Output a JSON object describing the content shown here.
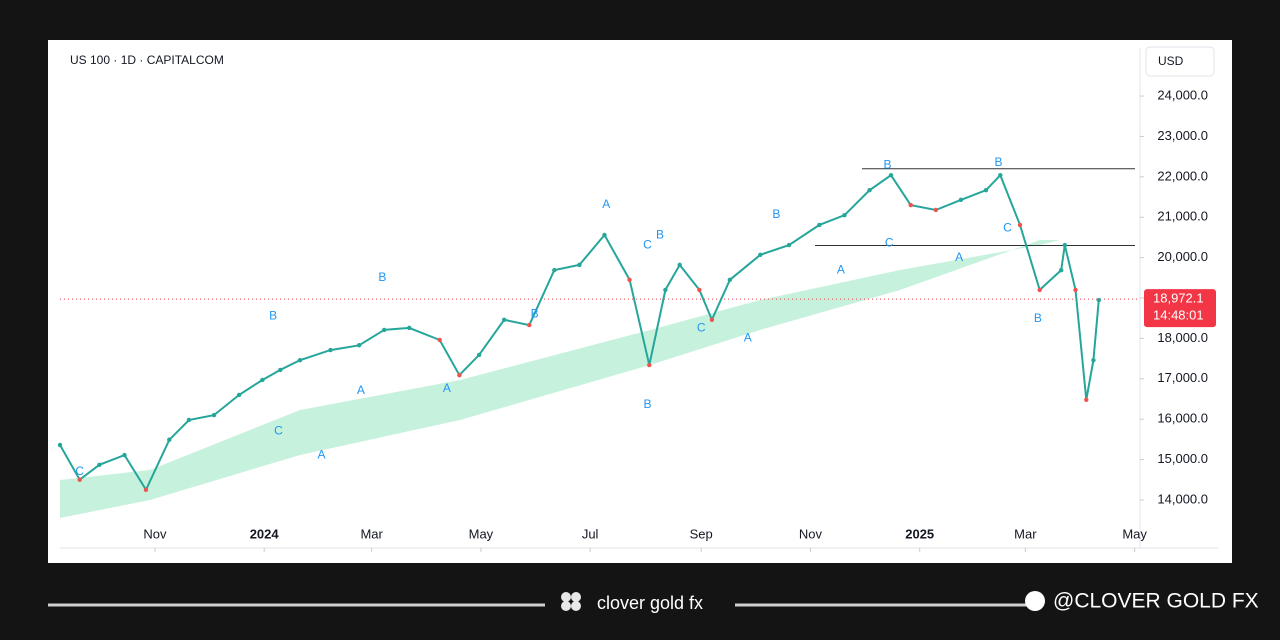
{
  "chart_data": {
    "type": "line",
    "title": "US 100 · 1D · CAPITALCOM",
    "currency": "USD",
    "series": [
      {
        "name": "US 100",
        "color": "#26a69a",
        "x": [
          -22,
          -11,
          0,
          14,
          26,
          39,
          50,
          64,
          78,
          91,
          101,
          112,
          129,
          145,
          159,
          173,
          190,
          201,
          212,
          226,
          240,
          254,
          268,
          282,
          296,
          307,
          316,
          324,
          335,
          342,
          352,
          369,
          385,
          402,
          416,
          430,
          442,
          453,
          467,
          481,
          495,
          503,
          514,
          525,
          537,
          539,
          545,
          551,
          555,
          558
        ],
        "values": [
          15360,
          14500,
          14870,
          15110,
          14250,
          15490,
          15980,
          16100,
          16600,
          16970,
          17220,
          17460,
          17710,
          17830,
          18210,
          18260,
          17960,
          17090,
          17590,
          18460,
          18330,
          19690,
          19820,
          20560,
          19450,
          17340,
          19200,
          19820,
          19200,
          18460,
          19450,
          20070,
          20310,
          20810,
          21050,
          21670,
          22040,
          21300,
          21180,
          21430,
          21670,
          22040,
          20810,
          19200,
          19690,
          20310,
          19200,
          16480,
          17460,
          18950
        ]
      }
    ],
    "xlim": [
      -22,
      581
    ],
    "xticks": [
      {
        "value": 31,
        "label": "Nov"
      },
      {
        "value": 92,
        "label": "2024"
      },
      {
        "value": 152,
        "label": "Mar"
      },
      {
        "value": 213,
        "label": "May"
      },
      {
        "value": 274,
        "label": "Jul"
      },
      {
        "value": 336,
        "label": "Sep"
      },
      {
        "value": 397,
        "label": "Nov"
      },
      {
        "value": 458,
        "label": "2025"
      },
      {
        "value": 517,
        "label": "Mar"
      },
      {
        "value": 578,
        "label": "May"
      }
    ],
    "ylim": [
      12810,
      25190
    ],
    "yticks": [
      {
        "value": 14000,
        "label": "14,000.0"
      },
      {
        "value": 15000,
        "label": "15,000.0"
      },
      {
        "value": 16000,
        "label": "16,000.0"
      },
      {
        "value": 17000,
        "label": "17,000.0"
      },
      {
        "value": 18000,
        "label": "18,000.0"
      },
      {
        "value": 19000,
        "label": "19,000.0"
      },
      {
        "value": 20000,
        "label": "20,000.0"
      },
      {
        "value": 21000,
        "label": "21,000.0"
      },
      {
        "value": 22000,
        "label": "22,000.0"
      },
      {
        "value": 23000,
        "label": "23,000.0"
      },
      {
        "value": 24000,
        "label": "24,000.0"
      }
    ],
    "last_price": {
      "value": 18972.1,
      "label": "18,972.1",
      "countdown": "14:48:01"
    },
    "levels": [
      22200,
      20300
    ],
    "annotations": [
      {
        "text": "C",
        "x": -11,
        "y": 14700
      },
      {
        "text": "B",
        "x": 97,
        "y": 18550
      },
      {
        "text": "C",
        "x": 100,
        "y": 15700
      },
      {
        "text": "A",
        "x": 124,
        "y": 15100
      },
      {
        "text": "A",
        "x": 194,
        "y": 16750
      },
      {
        "text": "B",
        "x": 158,
        "y": 19500
      },
      {
        "text": "A",
        "x": 146,
        "y": 16700
      },
      {
        "text": "B",
        "x": 243,
        "y": 18590
      },
      {
        "text": "A",
        "x": 283,
        "y": 21310
      },
      {
        "text": "C",
        "x": 306,
        "y": 20300
      },
      {
        "text": "B",
        "x": 313,
        "y": 20550
      },
      {
        "text": "B",
        "x": 306,
        "y": 16350
      },
      {
        "text": "C",
        "x": 336,
        "y": 18250
      },
      {
        "text": "A",
        "x": 362,
        "y": 18000
      },
      {
        "text": "B",
        "x": 378,
        "y": 21060
      },
      {
        "text": "A",
        "x": 414,
        "y": 19680
      },
      {
        "text": "B",
        "x": 440,
        "y": 22280
      },
      {
        "text": "C",
        "x": 441,
        "y": 20350
      },
      {
        "text": "A",
        "x": 480,
        "y": 20000
      },
      {
        "text": "B",
        "x": 502,
        "y": 22350
      },
      {
        "text": "C",
        "x": 507,
        "y": 20730
      },
      {
        "text": "B",
        "x": 524,
        "y": 18480
      }
    ],
    "footer": {
      "brand": "clover gold fx",
      "handle": "@CLOVER GOLD FX"
    }
  }
}
